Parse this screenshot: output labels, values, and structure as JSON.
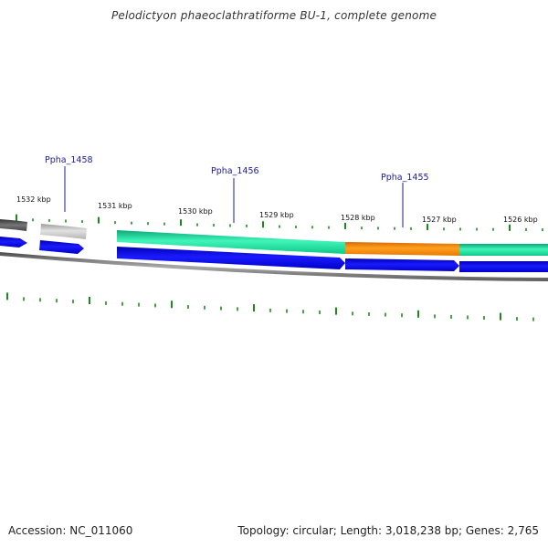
{
  "title": "Pelodictyon phaeoclathratiforme BU-1, complete genome",
  "footer": {
    "accession": "Accession: NC_011060",
    "summary": "Topology: circular; Length: 3,018,238 bp; Genes: 2,765"
  },
  "scale_labels": [
    "1532 kbp",
    "1531 kbp",
    "1530 kbp",
    "1529 kbp",
    "1528 kbp",
    "1527 kbp",
    "1526 kbp"
  ],
  "gene_labels": [
    "Ppha_1458",
    "Ppha_1456",
    "Ppha_1455"
  ],
  "colors": {
    "cds_forward": "#0000e6",
    "gene_teal": "#1ee6a0",
    "gene_orange": "#ff8c00",
    "gene_gray": "#c8c8c8",
    "gene_dark": "#555555",
    "backbone": "#777777",
    "gc_tick": "#1a8a1a",
    "label_line": "#1a1aa0"
  }
}
